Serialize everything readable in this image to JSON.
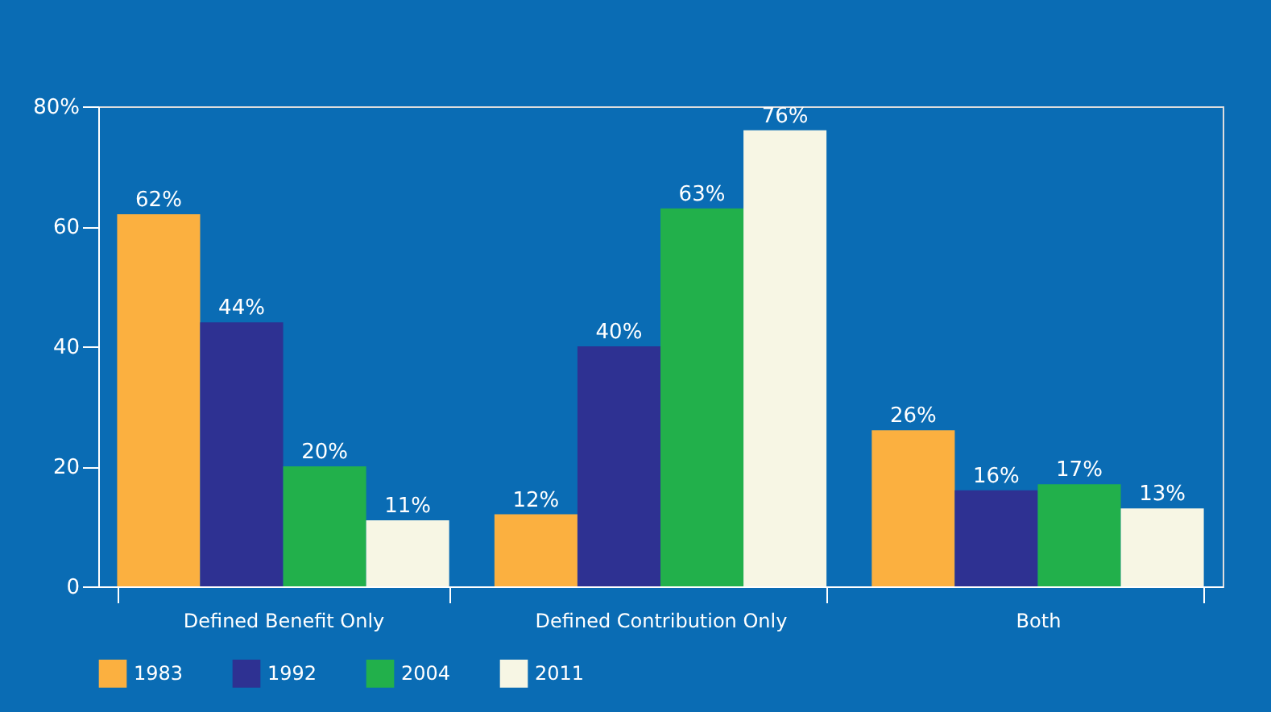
{
  "chart_data": {
    "type": "bar",
    "categories": [
      "Defined Benefit Only",
      "Defined Contribution Only",
      "Both"
    ],
    "series": [
      {
        "name": "1983",
        "color": "#fbb040",
        "values": [
          62,
          12,
          26
        ],
        "value_labels": [
          "62%",
          "12%",
          "26%"
        ]
      },
      {
        "name": "1992",
        "color": "#2e3192",
        "values": [
          44,
          40,
          16
        ],
        "value_labels": [
          "44%",
          "40%",
          "16%"
        ]
      },
      {
        "name": "2004",
        "color": "#22b04b",
        "values": [
          20,
          63,
          17
        ],
        "value_labels": [
          "20%",
          "63%",
          "17%"
        ]
      },
      {
        "name": "2011",
        "color": "#f7f6e4",
        "values": [
          11,
          76,
          13
        ],
        "value_labels": [
          "11%",
          "76%",
          "13%"
        ]
      }
    ],
    "ylim": [
      0,
      80
    ],
    "yticks": [
      0,
      20,
      40,
      60,
      {
        "value": 80,
        "label": "80%"
      }
    ],
    "grid": false,
    "legend": "bottom"
  }
}
